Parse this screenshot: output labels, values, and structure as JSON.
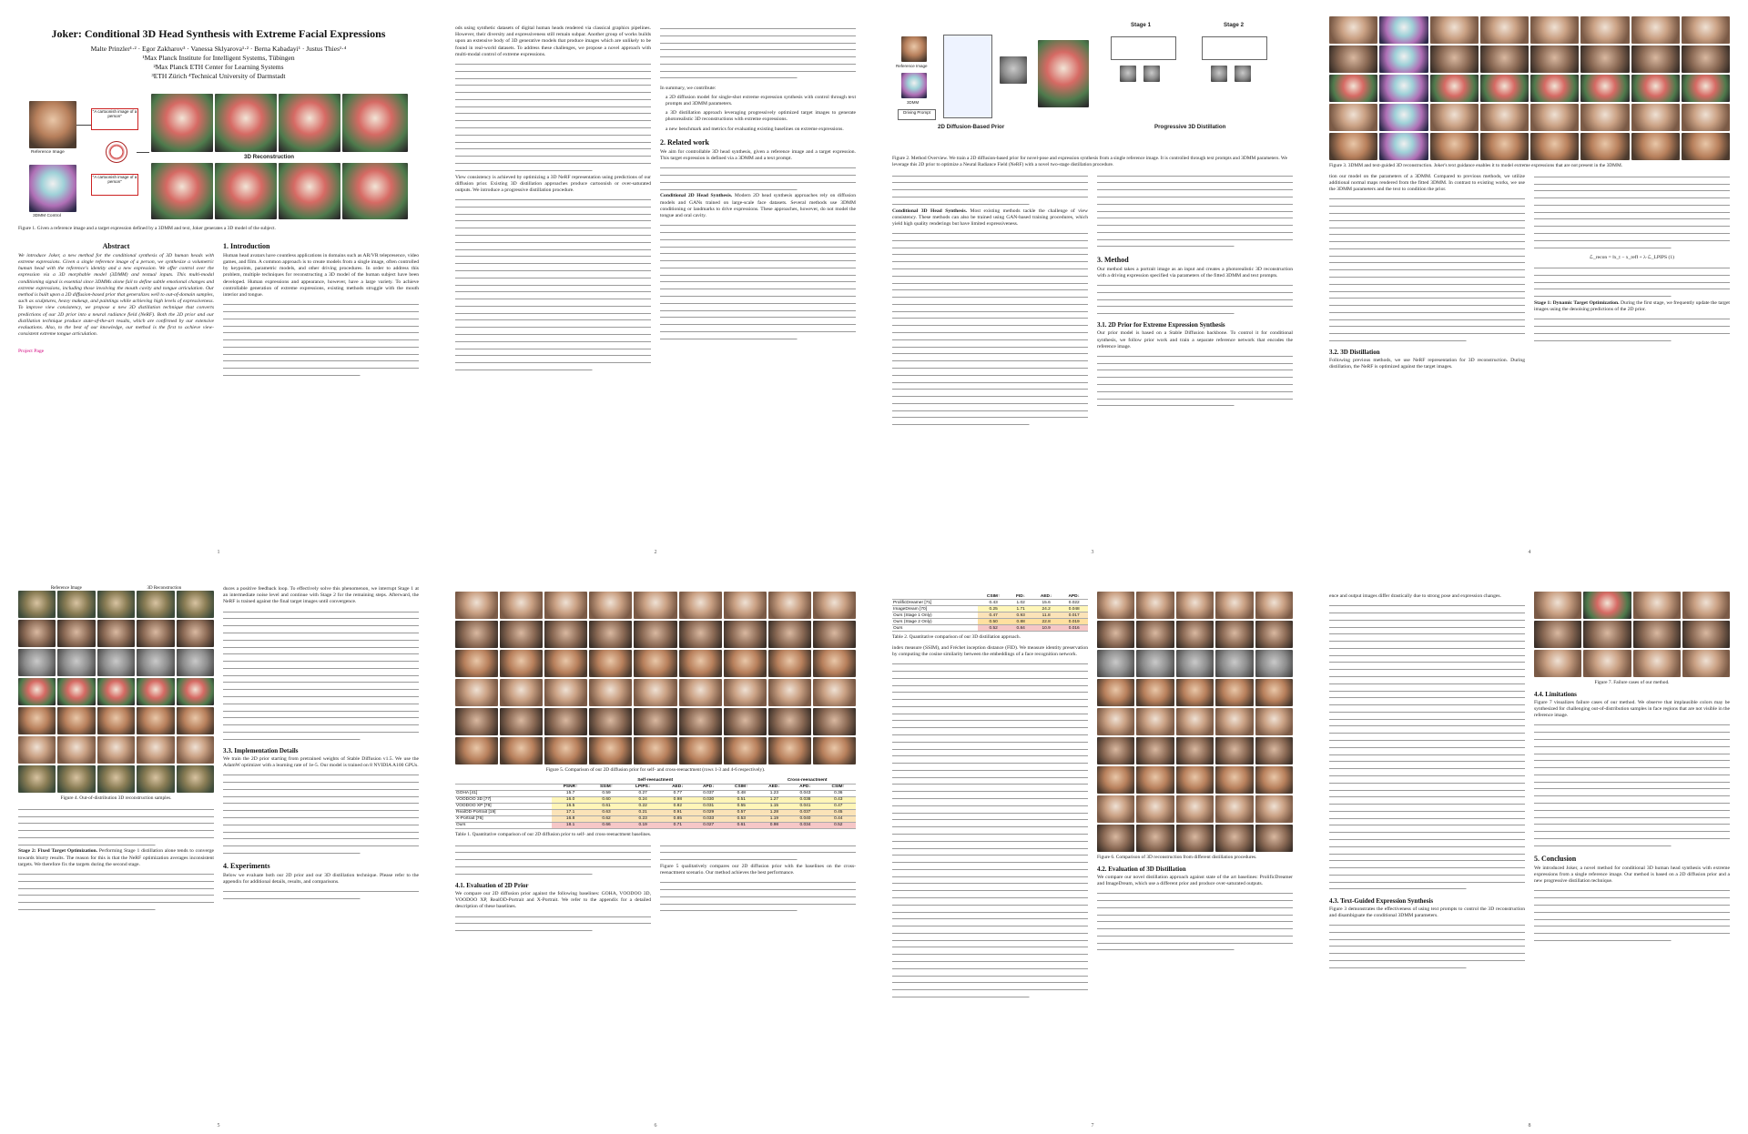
{
  "paper": {
    "title": "Joker: Conditional 3D Head Synthesis with Extreme Facial Expressions",
    "authors_line1": "Malte Prinzler¹·² · Egor Zakharov³ · Vanessa Sklyarova¹·² · Berna Kabadayi¹ · Justus Thies¹·⁴",
    "affil1": "¹Max Planck Institute for Intelligent Systems, Tübingen",
    "affil2": "²Max Planck ETH Center for Learning Systems",
    "affil3": "³ETH Zürich   ⁴Technical University of Darmstadt"
  },
  "page1": {
    "fig1_ref_label": "Reference Image",
    "fig1_3dmm_label": "3DMM Control",
    "fig1_text1": "\"A cartoonish image of a person\"",
    "fig1_text2": "\"A cartoonish image of a person\"",
    "fig1_recon_label": "3D Reconstruction",
    "fig1_caption": "Figure 1. Given a reference image and a target expression defined by a 3DMM and text, Joker generates a 3D model of the subject.",
    "abstract_heading": "Abstract",
    "abstract_text": "We introduce Joker, a new method for the conditional synthesis of 3D human heads with extreme expressions. Given a single reference image of a person, we synthesize a volumetric human head with the reference's identity and a new expression. We offer control over the expression via a 3D morphable model (3DMM) and textual inputs. This multi-modal conditioning signal is essential since 3DMMs alone fail to define subtle emotional changes and extreme expressions, including those involving the mouth cavity and tongue articulation. Our method is built upon a 2D diffusion-based prior that generalizes well to out-of-domain samples, such as sculptures, heavy makeup, and paintings while achieving high levels of expressiveness. To improve view consistency, we propose a new 3D distillation technique that converts predictions of our 2D prior into a neural radiance field (NeRF). Both the 2D prior and our distillation technique produce state-of-the-art results, which are confirmed by our extensive evaluations. Also, to the best of our knowledge, our method is the first to achieve view-consistent extreme tongue articulation.",
    "project_page": "Project Page",
    "intro_heading": "1. Introduction",
    "intro_text": "Human head avatars have countless applications in domains such as AR/VR telepresence, video games, and film. A common approach is to create models from a single image, often controlled by keypoints, parametric models, and other driving procedures. In order to address this problem, multiple techniques for reconstructing a 3D model of the human subject have been developed. Human expressions and appearance, however, have a large variety. To achieve controllable generation of extreme expressions, existing methods struggle with the mouth interior and tongue.",
    "page_number": "1"
  },
  "page2": {
    "text_a": "ods using synthetic datasets of digital human heads rendered via classical graphics pipelines. However, their diversity and expressiveness still remain subpar. Another group of works builds upon an extensive body of 3D generative models that produce images which are unlikely to be found in real-world datasets. To address these challenges, we propose a novel approach with multi-modal control of extreme expressions.",
    "text_b": "View consistency is achieved by optimizing a 3D NeRF representation using predictions of our diffusion prior. Existing 3D distillation approaches produce cartoonish or over-saturated outputs. We introduce a progressive distillation procedure.",
    "summary_heading": "In summary, we contribute:",
    "bullet1": "a 2D diffusion model for single-shot extreme expression synthesis with control through text prompts and 3DMM parameters.",
    "bullet2": "a 3D distillation approach leveraging progressively optimized target images to generate photorealistic 3D reconstructions with extreme expressions.",
    "bullet3": "a new benchmark and metrics for evaluating existing baselines on extreme expressions.",
    "related_heading": "2. Related work",
    "related_text": "We aim for controllable 3D head synthesis, given a reference image and a target expression. This target expression is defined via a 3DMM and a text prompt.",
    "cond2d_heading": "Conditional 2D Head Synthesis.",
    "cond2d_text": "Modern 2D head synthesis approaches rely on diffusion models and GANs trained on large-scale face datasets. Several methods use 3DMM conditioning or landmarks to drive expressions. These approaches, however, do not model the tongue and oral cavity.",
    "page_number": "2"
  },
  "page3": {
    "fig2_ref": "Reference Image",
    "fig2_3dmm": "3DMM",
    "fig2_prompt": "Driving Prompt",
    "fig2_prior": "2D Diffusion-Based Prior",
    "fig2_stage1": "Stage 1",
    "fig2_stage2": "Stage 2",
    "fig2_progressive": "Progressive 3D Distillation",
    "fig2_caption": "Figure 2. Method Overview. We train a 2D diffusion-based prior for novel-pose and expression synthesis from a single reference image. It is controlled through text prompts and 3DMM parameters. We leverage this 2D prior to optimize a Neural Radiance Field (NeRF) with a novel two-stage distillation procedure.",
    "cond3d_heading": "Conditional 3D Head Synthesis.",
    "cond3d_text": "Most existing methods tackle the challenge of view consistency. These methods can also be trained using GAN-based training procedures, which yield high quality renderings but have limited expressiveness.",
    "method_heading": "3. Method",
    "method_text": "Our method takes a portrait image as an input and creates a photorealistic 3D reconstruction with a driving expression specified via parameters of the fitted 3DMM and text prompts.",
    "sec31_heading": "3.1. 2D Prior for Extreme Expression Synthesis",
    "sec31_text": "Our prior model is based on a Stable Diffusion backbone. To control it for conditional synthesis, we follow prior work and train a separate reference network that encodes the reference image.",
    "page_number": "3"
  },
  "page4": {
    "fig3_caption": "Figure 3. 3DMM and text-guided 3D reconstruction. Joker's text guidance enables it to model extreme expressions that are not present in the 3DMM.",
    "text_a": "tion our model on the parameters of a 3DMM. Compared to previous methods, we utilize additional normal maps rendered from the fitted 3DMM. In contrast to existing works, we use the 3DMM parameters and the text to condition the prior.",
    "formula": "ℒ_recon = ‖x_t − x_ref‖ + λ·ℒ_LPIPS    (1)",
    "sec32_heading": "3.2. 3D Distillation",
    "sec32_text": "Following previous methods, we use NeRF representation for 3D reconstruction. During distillation, the NeRF is optimized against the target images.",
    "stage1_heading": "Stage 1: Dynamic Target Optimization.",
    "stage1_text": "During the first stage, we frequently update the target images using the denoising predictions of the 2D prior.",
    "page_number": "4"
  },
  "page5": {
    "fig4_col1": "Reference Image",
    "fig4_col2": "3D Reconstruction",
    "fig4_caption": "Figure 4. Out-of-distribution 3D reconstruction samples.",
    "text_a": "duces a positive feedback loop. To effectively solve this phenomenon, we interrupt Stage 1 at an intermediate noise level and continue with Stage 2 for the remaining steps. Afterward, the NeRF is trained against the final target images until convergence.",
    "stage2_heading": "Stage 2: Fixed Target Optimization.",
    "stage2_text": "Performing Stage 1 distillation alone tends to converge towards blurry results. The reason for this is that the NeRF optimization averages inconsistent targets. We therefore fix the targets during the second stage.",
    "impl_heading": "3.3. Implementation Details",
    "impl_text": "We train the 2D prior starting from pretrained weights of Stable Diffusion v1.5. We use the AdamW optimizer with a learning rate of 1e-5. Our model is trained on 8 NVIDIA A100 GPUs.",
    "exp_heading": "4. Experiments",
    "exp_text": "Below we evaluate both our 2D prior and our 3D distillation technique. Please refer to the appendix for additional details, results, and comparisons.",
    "page_number": "5"
  },
  "page6": {
    "fig5_caption": "Figure 5. Comparison of our 2D diffusion prior for self- and cross-reenactment (rows 1-3 and 4-6 respectively).",
    "table_caption": "Table 1. Quantitative comparison of our 2D diffusion prior to self- and cross-reenactment baselines.",
    "table_group1": "Self-reenactment",
    "table_group2": "Cross-reenactment",
    "table_headers": [
      "",
      "PSNR↑",
      "SSIM↑",
      "LPIPS↓",
      "AED↓",
      "APD↓",
      "CSIM↑",
      "AED↓",
      "APD↓",
      "CSIM↑"
    ],
    "table_rows": [
      [
        "GOHA [41]",
        "15.7",
        "0.59",
        "0.27",
        "0.77",
        "0.037",
        "0.48",
        "1.23",
        "0.043",
        "0.36"
      ],
      [
        "VOODOO 3D [77]",
        "16.0",
        "0.60",
        "0.24",
        "0.98",
        "0.030",
        "0.51",
        "1.27",
        "0.038",
        "0.43"
      ],
      [
        "VOODOO XP [78]",
        "16.5",
        "0.61",
        "0.22",
        "0.82",
        "0.031",
        "0.55",
        "1.15",
        "0.041",
        "0.47"
      ],
      [
        "RealOD-Portrait [19]",
        "17.1",
        "0.63",
        "0.21",
        "0.91",
        "0.029",
        "0.57",
        "1.28",
        "0.037",
        "0.45"
      ],
      [
        "X-Portrait [76]",
        "16.8",
        "0.62",
        "0.23",
        "0.85",
        "0.033",
        "0.53",
        "1.19",
        "0.040",
        "0.44"
      ],
      [
        "Ours",
        "18.1",
        "0.66",
        "0.19",
        "0.71",
        "0.027",
        "0.61",
        "0.98",
        "0.034",
        "0.52"
      ]
    ],
    "eval_heading": "4.1. Evaluation of 2D Prior",
    "eval_text": "We compare our 2D diffusion prior against the following baselines: GOHA, VOODOO 3D, VOODOO XP, RealOD-Portrait and X-Portrait. We refer to the appendix for a detailed description of these baselines.",
    "text_b": "Figure 5 qualitatively compares our 2D diffusion prior with the baselines on the cross-reenactment scenario. Our method achieves the best performance.",
    "page_number": "6"
  },
  "page7": {
    "table2_headers": [
      "",
      "CSIM↑",
      "FID↓",
      "AED↓",
      "APD↓"
    ],
    "table2_rows": [
      [
        "ProlificDreamer [71]",
        "0.43",
        "1.02",
        "15.6",
        "0.022"
      ],
      [
        "ImageDream [70]",
        "0.25",
        "1.71",
        "24.2",
        "0.048"
      ],
      [
        "Ours (Stage 1 Only)",
        "0.47",
        "0.93",
        "11.8",
        "0.017"
      ],
      [
        "Ours (Stage 2 Only)",
        "0.50",
        "0.88",
        "22.8",
        "0.019"
      ],
      [
        "Ours",
        "0.52",
        "0.84",
        "10.9",
        "0.016"
      ]
    ],
    "table2_caption": "Table 2. Quantitative comparison of our 3D distillation approach.",
    "text_a": "index measure (SSIM), and Fréchet inception distance (FID). We measure identity preservation by computing the cosine similarity between the embeddings of a face recognition network.",
    "fig6_caption": "Figure 6. Comparison of 3D reconstruction from different distillation procedures.",
    "sec42_heading": "4.2. Evaluation of 3D Distillation",
    "sec42_text": "We compare our novel distillation approach against state of the art baselines: ProlificDreamer and ImageDream, which use a different prior and produce over-saturated outputs.",
    "page_number": "7"
  },
  "page8": {
    "text_a": "ence and output images differ drastically due to strong pose and expression changes.",
    "fig7_caption": "Figure 7. Failure cases of our method.",
    "sec43_heading": "4.3. Text-Guided Expression Synthesis",
    "sec43_text": "Figure 3 demonstrates the effectiveness of using text prompts to control the 3D reconstruction and disambiguate the conditional 3DMM parameters.",
    "limit_heading": "4.4. Limitations",
    "limit_text": "Figure 7 visualizes failure cases of our method. We observe that implausible colors may be synthesized for challenging out-of-distribution samples in face regions that are not visible in the reference image.",
    "concl_heading": "5. Conclusion",
    "concl_text": "We introduced Joker, a novel method for conditional 3D human head synthesis with extreme expressions from a single reference image. Our method is based on a 2D diffusion prior and a new progressive distillation technique.",
    "page_number": "8"
  },
  "colors": {
    "link": "#d2007d",
    "highlight_red": "#f6c7c7",
    "highlight_orange": "#fbe3b8",
    "highlight_yellow": "#fff6b8"
  }
}
